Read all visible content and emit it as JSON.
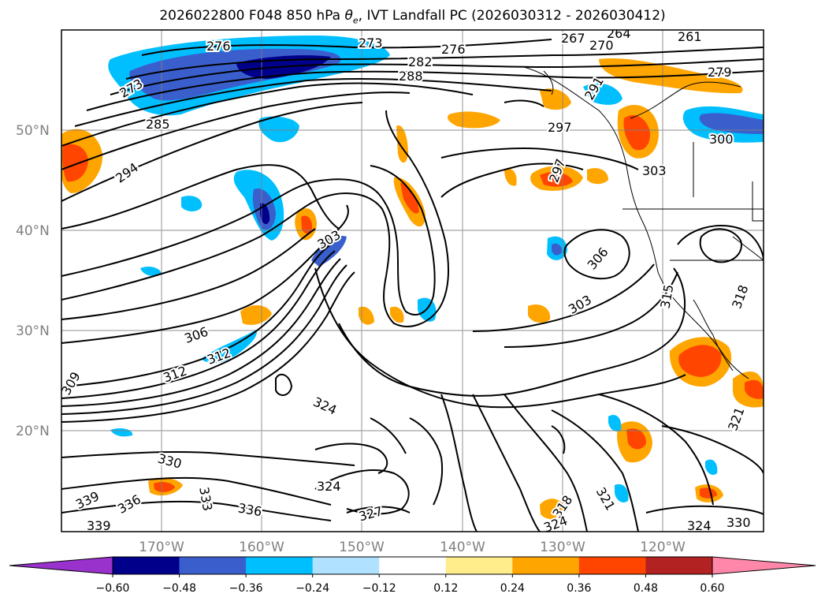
{
  "title_prefix": "2026022800 F048 850 hPa ",
  "title_symbol": "θ",
  "title_subscript": "e",
  "title_suffix": ", IVT Landfall PC (2026030312 - 2026030412)",
  "lat_labels": [
    "50°N",
    "40°N",
    "30°N",
    "20°N"
  ],
  "lon_labels": [
    "170°W",
    "160°W",
    "150°W",
    "140°W",
    "130°W",
    "120°W"
  ],
  "colorbar": {
    "colors": [
      "#9932cc",
      "#00008b",
      "#3a5fcd",
      "#00bfff",
      "#b0e2ff",
      "#ffffff",
      "#ffec8b",
      "#ffa500",
      "#ff4500",
      "#b22222",
      "#ff88aa"
    ],
    "tick_labels": [
      "−0.60",
      "−0.48",
      "−0.36",
      "−0.24",
      "−0.12",
      "0.12",
      "0.24",
      "0.36",
      "0.48",
      "0.60"
    ]
  },
  "contour_labels": [
    {
      "text": "276"
    },
    {
      "text": "273"
    },
    {
      "text": "273"
    },
    {
      "text": "282"
    },
    {
      "text": "288"
    },
    {
      "text": "276"
    },
    {
      "text": "285"
    },
    {
      "text": "294"
    },
    {
      "text": "261"
    },
    {
      "text": "264"
    },
    {
      "text": "267"
    },
    {
      "text": "270"
    },
    {
      "text": "279"
    },
    {
      "text": "291"
    },
    {
      "text": "297"
    },
    {
      "text": "297"
    },
    {
      "text": "300"
    },
    {
      "text": "303"
    },
    {
      "text": "303"
    },
    {
      "text": "306"
    },
    {
      "text": "303"
    },
    {
      "text": "315"
    },
    {
      "text": "318"
    },
    {
      "text": "306"
    },
    {
      "text": "312"
    },
    {
      "text": "312"
    },
    {
      "text": "309"
    },
    {
      "text": "324"
    },
    {
      "text": "321"
    },
    {
      "text": "330"
    },
    {
      "text": "339"
    },
    {
      "text": "336"
    },
    {
      "text": "333"
    },
    {
      "text": "336"
    },
    {
      "text": "324"
    },
    {
      "text": "327"
    },
    {
      "text": "318"
    },
    {
      "text": "321"
    },
    {
      "text": "324"
    },
    {
      "text": "339"
    },
    {
      "text": "324"
    },
    {
      "text": "330"
    }
  ]
}
